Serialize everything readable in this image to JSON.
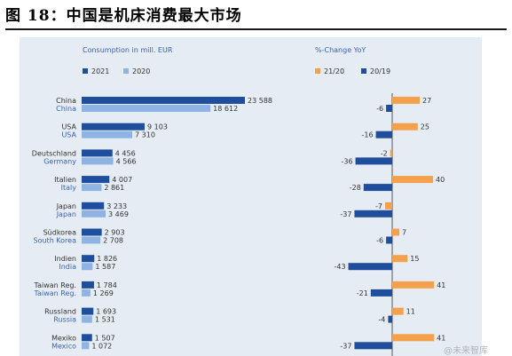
{
  "figure_title": "图 18：中国是机床消费最大市场",
  "watermark_text": "@未来智库",
  "chart_data": [
    {
      "type": "bar",
      "orientation": "horizontal",
      "title": "Consumption in mill. EUR",
      "categories_de": [
        "China",
        "USA",
        "Deutschland",
        "Italien",
        "Japan",
        "Südkorea",
        "Indien",
        "Taiwan Reg.",
        "Russland",
        "Mexiko"
      ],
      "categories_en": [
        "China",
        "USA",
        "Germany",
        "Italy",
        "Japan",
        "South Korea",
        "India",
        "Taiwan Reg.",
        "Russia",
        "Mexico"
      ],
      "series": [
        {
          "name": "2021",
          "color": "#1f4e9c",
          "values": [
            23588,
            9103,
            4456,
            4007,
            3233,
            2903,
            1826,
            1784,
            1693,
            1507
          ],
          "labels": [
            "23 588",
            "9 103",
            "4 456",
            "4 007",
            "3 233",
            "2 903",
            "1 826",
            "1 784",
            "1 693",
            "1 507"
          ]
        },
        {
          "name": "2020",
          "color": "#8fb4e3",
          "values": [
            18612,
            7310,
            4566,
            2861,
            3469,
            2708,
            1587,
            1269,
            1531,
            1072
          ],
          "labels": [
            "18 612",
            "7 310",
            "4 566",
            "2 861",
            "3 469",
            "2 708",
            "1 587",
            "1 269",
            "1 531",
            "1 072"
          ]
        }
      ],
      "category_colors": {
        "primary": "#333333",
        "secondary": "#3a63b8"
      },
      "legend_position": "top-left",
      "grid": false
    },
    {
      "type": "bar",
      "orientation": "horizontal",
      "title": "%-Change YoY",
      "categories": [
        "China",
        "USA",
        "Germany",
        "Italy",
        "Japan",
        "South Korea",
        "India",
        "Taiwan Reg.",
        "Russia",
        "Mexico"
      ],
      "series": [
        {
          "name": "21/20",
          "color": "#f5a04b",
          "values": [
            27,
            25,
            -2,
            40,
            -7,
            7,
            15,
            41,
            11,
            41
          ]
        },
        {
          "name": "20/19",
          "color": "#1f4e9c",
          "values": [
            -6,
            -16,
            -36,
            -28,
            -37,
            -6,
            -43,
            -21,
            -4,
            -37
          ]
        }
      ],
      "legend_position": "top-left",
      "grid": false
    }
  ]
}
